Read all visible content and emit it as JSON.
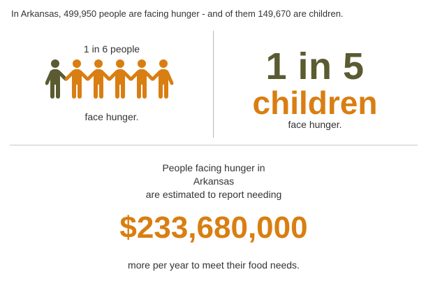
{
  "intro": "In Arkansas, 499,950 people are facing hunger - and of them 149,670 are children.",
  "people_stat": {
    "ratio_label": "1 in 6 people",
    "caption": "face hunger.",
    "icons": {
      "total": 6,
      "highlighted": 1,
      "highlight_color": "#5b5b32",
      "base_color": "#d97e12"
    }
  },
  "children_stat": {
    "ratio": "1 in 5",
    "subject": "children",
    "caption": "face hunger."
  },
  "need": {
    "line1": "People facing hunger in",
    "line2": "Arkansas",
    "line3": "are estimated to report needing",
    "amount": "$233,680,000",
    "tail": "more per year to meet their food needs."
  },
  "colors": {
    "accent": "#d97e12",
    "olive": "#5b5b32",
    "text": "#333333",
    "divider": "#b8b8b8"
  }
}
